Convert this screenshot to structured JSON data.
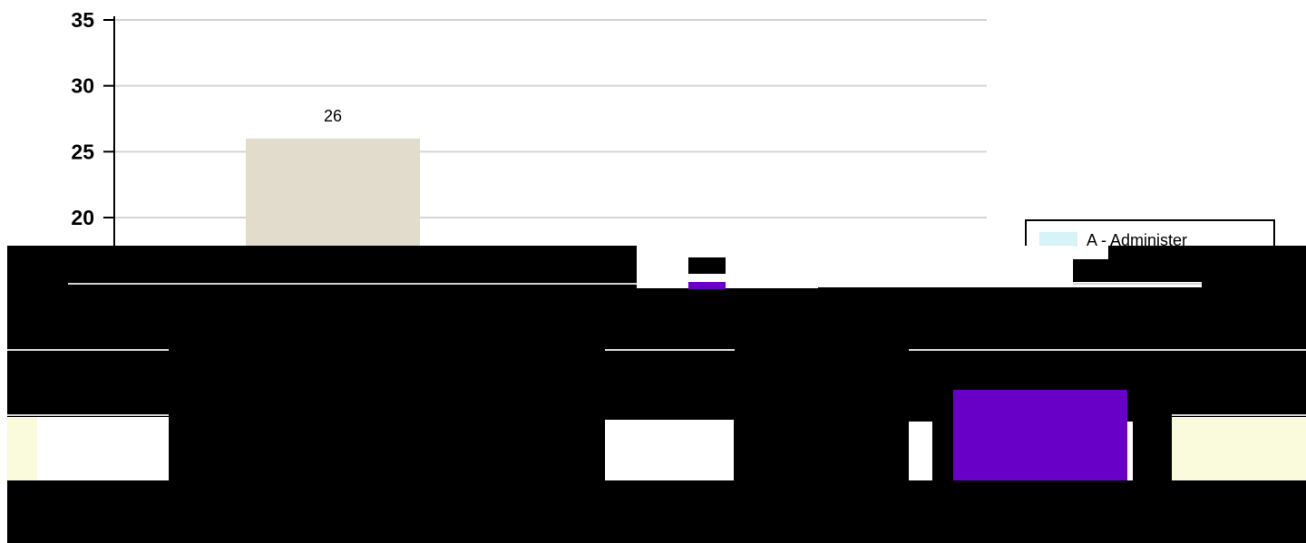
{
  "chart_data": {
    "type": "bar",
    "ylim": [
      0,
      35
    ],
    "y_ticks": [
      20,
      25,
      30,
      35
    ],
    "grid": true,
    "series": [
      {
        "name": "A - Administer",
        "value": 26,
        "value_label": "26",
        "color": "#e2dccc"
      }
    ],
    "legend": {
      "placement": "right",
      "entries": [
        {
          "label": "A - Administer",
          "color": "#d6f3f8"
        }
      ]
    }
  },
  "colors": {
    "grid": "#d4d4d4",
    "axis": "#000000",
    "occlusion": "#000000",
    "accent_purple": "#6800c8",
    "pale_yellow": "#f9fbdc"
  }
}
